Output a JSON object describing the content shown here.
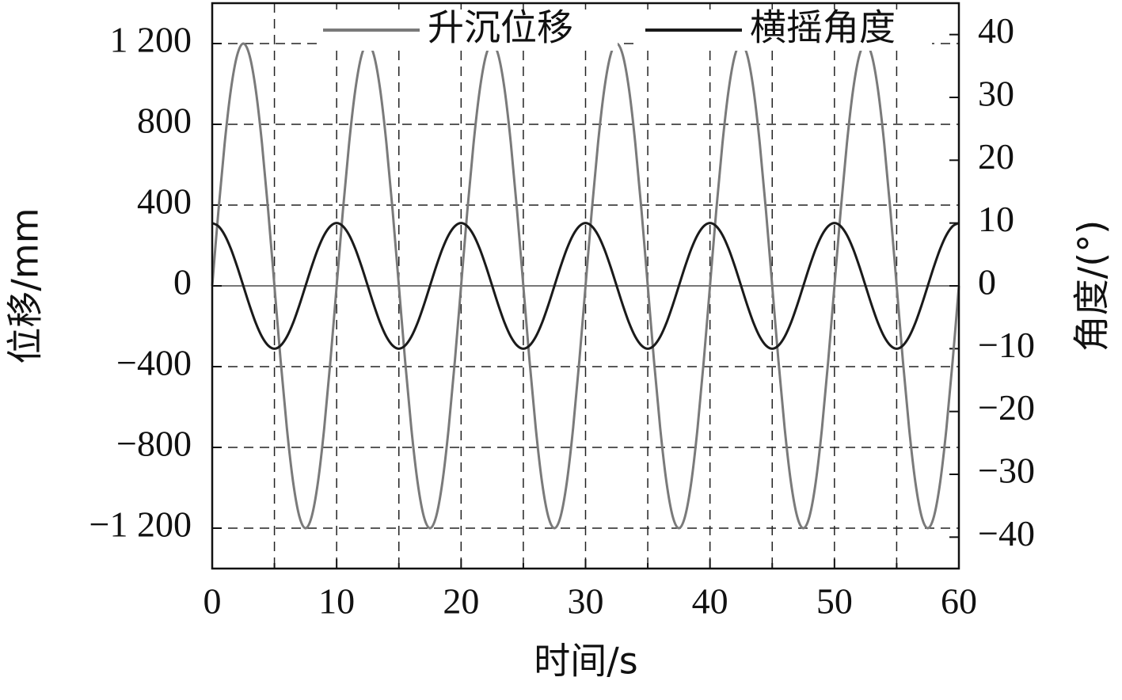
{
  "chart_data": {
    "type": "line",
    "x_label": "时间/s",
    "y_label": "位移/mm",
    "y2_label": "角度/(°)",
    "x": [
      0,
      0.5,
      1,
      1.5,
      2,
      2.5,
      3,
      3.5,
      4,
      4.5,
      5,
      5.5,
      6,
      6.5,
      7,
      7.5,
      8,
      8.5,
      9,
      9.5,
      10,
      10.5,
      11,
      11.5,
      12,
      12.5,
      13,
      13.5,
      14,
      14.5,
      15,
      15.5,
      16,
      16.5,
      17,
      17.5,
      18,
      18.5,
      19,
      19.5,
      20,
      20.5,
      21,
      21.5,
      22,
      22.5,
      23,
      23.5,
      24,
      24.5,
      25,
      25.5,
      26,
      26.5,
      27,
      27.5,
      28,
      28.5,
      29,
      29.5,
      30,
      30.5,
      31,
      31.5,
      32,
      32.5,
      33,
      33.5,
      34,
      34.5,
      35,
      35.5,
      36,
      36.5,
      37,
      37.5,
      38,
      38.5,
      39,
      39.5,
      40,
      40.5,
      41,
      41.5,
      42,
      42.5,
      43,
      43.5,
      44,
      44.5,
      45,
      45.5,
      46,
      46.5,
      47,
      47.5,
      48,
      48.5,
      49,
      49.5,
      50,
      50.5,
      51,
      51.5,
      52,
      52.5,
      53,
      53.5,
      54,
      54.5,
      55,
      55.5,
      56,
      56.5,
      57,
      57.5,
      58,
      58.5,
      59,
      59.5,
      60
    ],
    "series": [
      {
        "name": "升沉位移",
        "color": "#7a7a7a",
        "axis": "y",
        "values": [
          0,
          371,
          705,
          971,
          1141,
          1200,
          1141,
          971,
          705,
          371,
          0,
          -371,
          -705,
          -971,
          -1141,
          -1200,
          -1141,
          -971,
          -705,
          -371,
          0,
          371,
          705,
          971,
          1141,
          1200,
          1141,
          971,
          705,
          371,
          0,
          -371,
          -705,
          -971,
          -1141,
          -1200,
          -1141,
          -971,
          -705,
          -371,
          0,
          371,
          705,
          971,
          1141,
          1200,
          1141,
          971,
          705,
          371,
          0,
          -371,
          -705,
          -971,
          -1141,
          -1200,
          -1141,
          -971,
          -705,
          -371,
          0,
          371,
          705,
          971,
          1141,
          1200,
          1141,
          971,
          705,
          371,
          0,
          -371,
          -705,
          -971,
          -1141,
          -1200,
          -1141,
          -971,
          -705,
          -371,
          0,
          371,
          705,
          971,
          1141,
          1200,
          1141,
          971,
          705,
          371,
          0,
          -371,
          -705,
          -971,
          -1141,
          -1200,
          -1141,
          -971,
          -705,
          -371,
          0,
          371,
          705,
          971,
          1141,
          1200,
          1141,
          971,
          705,
          371,
          0,
          -371,
          -705,
          -971,
          -1141,
          -1200,
          -1141,
          -971,
          -705,
          -371,
          0
        ]
      },
      {
        "name": "横摇角度",
        "color": "#1a1a1a",
        "axis": "y2",
        "values": [
          10,
          9.5,
          8.1,
          5.9,
          3.1,
          0,
          -3.1,
          -5.9,
          -8.1,
          -9.5,
          -10,
          -9.5,
          -8.1,
          -5.9,
          -3.1,
          0,
          3.1,
          5.9,
          8.1,
          9.5,
          10,
          9.5,
          8.1,
          5.9,
          3.1,
          0,
          -3.1,
          -5.9,
          -8.1,
          -9.5,
          -10,
          -9.5,
          -8.1,
          -5.9,
          -3.1,
          0,
          3.1,
          5.9,
          8.1,
          9.5,
          10,
          9.5,
          8.1,
          5.9,
          3.1,
          0,
          -3.1,
          -5.9,
          -8.1,
          -9.5,
          -10,
          -9.5,
          -8.1,
          -5.9,
          -3.1,
          0,
          3.1,
          5.9,
          8.1,
          9.5,
          10,
          9.5,
          8.1,
          5.9,
          3.1,
          0,
          -3.1,
          -5.9,
          -8.1,
          -9.5,
          -10,
          -9.5,
          -8.1,
          -5.9,
          -3.1,
          0,
          3.1,
          5.9,
          8.1,
          9.5,
          10,
          9.5,
          8.1,
          5.9,
          3.1,
          0,
          -3.1,
          -5.9,
          -8.1,
          -9.5,
          -10,
          -9.5,
          -8.1,
          -5.9,
          -3.1,
          0,
          3.1,
          5.9,
          8.1,
          9.5,
          10,
          9.5,
          8.1,
          5.9,
          3.1,
          0,
          -3.1,
          -5.9,
          -8.1,
          -9.5,
          -10,
          -9.5,
          -8.1,
          -5.9,
          -3.1,
          0,
          3.1,
          5.9,
          8.1,
          9.5,
          10
        ]
      }
    ],
    "xlim": [
      0,
      60
    ],
    "xticks": [
      0,
      10,
      20,
      30,
      40,
      50,
      60
    ],
    "xminorticks": [
      5,
      15,
      25,
      35,
      45,
      55
    ],
    "ylim": [
      -1400,
      1400
    ],
    "yticks": [
      {
        "value": 1200,
        "label": "1 200"
      },
      800,
      400,
      0,
      {
        "value": -400,
        "label": "−400"
      },
      {
        "value": -800,
        "label": "−800"
      },
      {
        "value": -1200,
        "label": "−1 200"
      }
    ],
    "y2lim": [
      -45,
      45
    ],
    "y2ticks": [
      40,
      30,
      20,
      10,
      0,
      {
        "value": -10,
        "label": "−10"
      },
      {
        "value": -20,
        "label": "−20"
      },
      {
        "value": -30,
        "label": "−30"
      },
      {
        "value": -40,
        "label": "−40"
      }
    ],
    "grid": true,
    "legend": "top"
  }
}
